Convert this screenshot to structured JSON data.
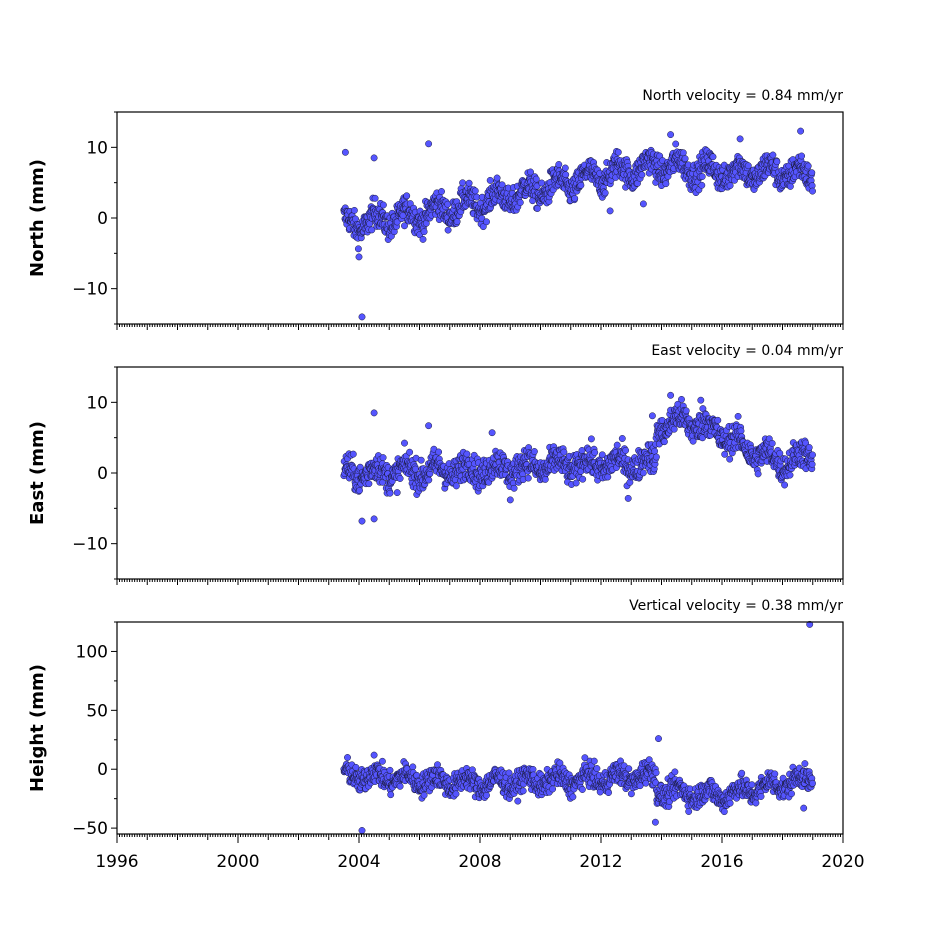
{
  "chart_data": [
    {
      "type": "scatter",
      "title": "North velocity = 0.84 mm/yr",
      "xlabel": "",
      "ylabel": "North (mm)",
      "xlim": [
        1996,
        2020
      ],
      "ylim": [
        -15,
        15
      ],
      "yticks": [
        -10,
        0,
        10
      ],
      "yticklabels": [
        "−10",
        "0",
        "10"
      ],
      "color": "#5555ff",
      "grid": false,
      "trend": [
        [
          2003.5,
          -1
        ],
        [
          2006.0,
          0.5
        ],
        [
          2010.0,
          4
        ],
        [
          2012.5,
          6.5
        ],
        [
          2014.0,
          7.5
        ],
        [
          2016.0,
          6.5
        ],
        [
          2018.0,
          6.5
        ],
        [
          2019.0,
          6
        ]
      ],
      "spread": 1.4,
      "seasonal_amplitude": 1.2,
      "outliers": [
        [
          2003.55,
          9.3
        ],
        [
          2004.1,
          -14
        ],
        [
          2004.5,
          8.5
        ],
        [
          2006.3,
          10.5
        ],
        [
          2004.0,
          -5.5
        ],
        [
          2014.3,
          11.8
        ],
        [
          2018.6,
          12.3
        ],
        [
          2016.6,
          11.2
        ],
        [
          2012.3,
          1
        ],
        [
          2013.4,
          2
        ]
      ]
    },
    {
      "type": "scatter",
      "title": "East velocity = 0.04 mm/yr",
      "xlabel": "",
      "ylabel": "East (mm)",
      "xlim": [
        1996,
        2020
      ],
      "ylim": [
        -15,
        15
      ],
      "yticks": [
        -10,
        0,
        10
      ],
      "yticklabels": [
        "−10",
        "0",
        "10"
      ],
      "color": "#5555ff",
      "grid": false,
      "trend": [
        [
          2003.5,
          0
        ],
        [
          2008.0,
          0.5
        ],
        [
          2010.0,
          1
        ],
        [
          2013.8,
          1.5
        ],
        [
          2013.85,
          6.5
        ],
        [
          2014.8,
          7.5
        ],
        [
          2015.8,
          6
        ],
        [
          2017.0,
          3
        ],
        [
          2018.0,
          1.5
        ],
        [
          2019.0,
          2.5
        ]
      ],
      "spread": 1.5,
      "seasonal_amplitude": 1.0,
      "outliers": [
        [
          2004.1,
          -6.8
        ],
        [
          2004.5,
          -6.5
        ],
        [
          2004.5,
          8.5
        ],
        [
          2006.3,
          6.7
        ],
        [
          2008.4,
          5.7
        ],
        [
          2013.7,
          8.1
        ],
        [
          2014.3,
          11
        ],
        [
          2015.3,
          10.3
        ],
        [
          2009.0,
          -3.8
        ],
        [
          2012.9,
          -3.6
        ]
      ]
    },
    {
      "type": "scatter",
      "title": "Vertical velocity = 0.38 mm/yr",
      "xlabel": "",
      "ylabel": "Height (mm)",
      "xlim": [
        1996,
        2020
      ],
      "ylim": [
        -55,
        125
      ],
      "yticks": [
        -50,
        0,
        50,
        100
      ],
      "yticklabels": [
        "−50",
        "0",
        "50",
        "100"
      ],
      "xticks": [
        1996,
        2000,
        2004,
        2008,
        2012,
        2016,
        2020
      ],
      "xticklabels": [
        "1996",
        "2000",
        "2004",
        "2008",
        "2012",
        "2016",
        "2020"
      ],
      "color": "#5555ff",
      "grid": false,
      "trend": [
        [
          2003.5,
          -5
        ],
        [
          2008.0,
          -12
        ],
        [
          2012.0,
          -8
        ],
        [
          2013.8,
          -5
        ],
        [
          2013.85,
          -18
        ],
        [
          2016.0,
          -22
        ],
        [
          2018.0,
          -12
        ],
        [
          2019.0,
          -8
        ]
      ],
      "spread": 7,
      "seasonal_amplitude": 5,
      "outliers": [
        [
          2004.1,
          -52
        ],
        [
          2013.9,
          26
        ],
        [
          2013.8,
          -45
        ],
        [
          2018.9,
          123
        ],
        [
          2004.5,
          12
        ],
        [
          2018.7,
          -33
        ]
      ]
    }
  ]
}
